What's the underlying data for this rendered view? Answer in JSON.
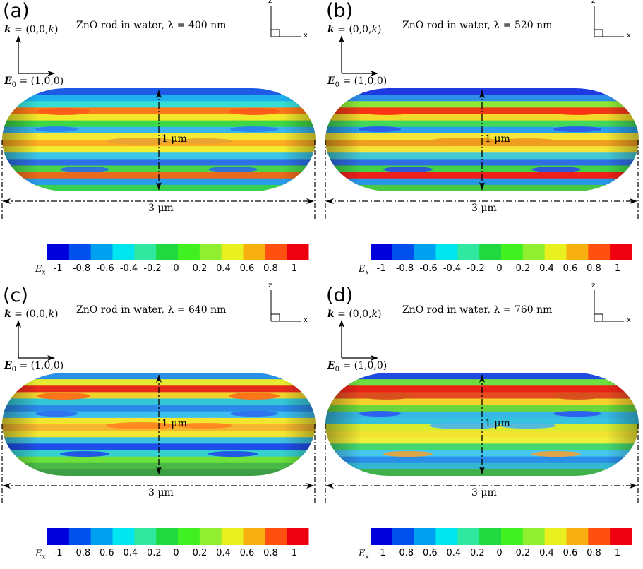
{
  "panels": [
    {
      "label": "(a)",
      "title_prefix": "ZnO rod in water, ",
      "lambda_symbol": "λ",
      "title_value": " = 400 nm"
    },
    {
      "label": "(b)",
      "title_prefix": "ZnO rod in water, ",
      "lambda_symbol": "λ",
      "title_value": " = 520 nm"
    },
    {
      "label": "(c)",
      "title_prefix": "ZnO rod in water, ",
      "lambda_symbol": "λ",
      "title_value": " = 640 nm"
    },
    {
      "label": "(d)",
      "title_prefix": "ZnO rod in water, ",
      "lambda_symbol": "λ",
      "title_value": " = 760 nm"
    }
  ],
  "common": {
    "k_symbol": "k",
    "k_value": " = (0,0,",
    "k_italic": "k",
    "k_close": ")",
    "e_symbol": "E",
    "e_sub": "0",
    "e_value": " = (1,0,0)",
    "axis_z": "z",
    "axis_x": "x",
    "height_label": "1 μm",
    "length_label": "3 μm",
    "colorbar_symbol": "E",
    "colorbar_sub": "x"
  },
  "colorbar": {
    "colors": [
      "#0000dd",
      "#0050ee",
      "#00a0f0",
      "#00e6f0",
      "#30e8a0",
      "#20d840",
      "#40f020",
      "#90f030",
      "#e8f020",
      "#f8b010",
      "#ff5010",
      "#ee0010"
    ],
    "tick_labels": [
      "-1",
      "-0.8",
      "-0.6",
      "-0.4",
      "-0.2",
      "0",
      "0.2",
      "0.4",
      "0.6",
      "0.8",
      "1"
    ]
  }
}
